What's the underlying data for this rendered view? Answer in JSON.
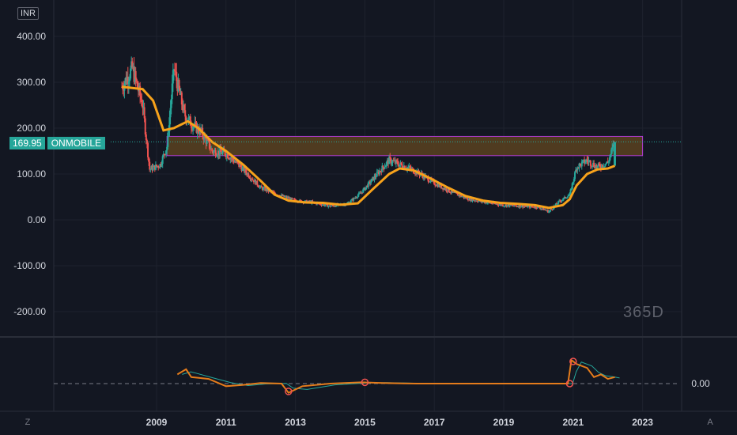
{
  "currency_label": "INR",
  "symbol": "ONMOBILE",
  "last_price": "169.95",
  "period_label": "365D",
  "corner_left": "Z",
  "corner_right": "A",
  "colors": {
    "up": "#26a69a",
    "down": "#ef5350",
    "ma": "#f7a21b",
    "zone_fill": "#5b4220",
    "zone_border": "#b03ad6",
    "price_line": "#26a69a"
  },
  "chart_data": {
    "type": "candlestick",
    "title": "",
    "xlabel": "",
    "ylabel": "",
    "yticks": [
      "400.00",
      "300.00",
      "200.00",
      "100.00",
      "0.00",
      "-100.00",
      "-200.00"
    ],
    "ylim": [
      -240,
      420
    ],
    "xticks": [
      "2009",
      "2011",
      "2013",
      "2015",
      "2017",
      "2019",
      "2021",
      "2023"
    ],
    "xlim": [
      2007.5,
      2024.0
    ],
    "price_series": [
      {
        "t": 2008.0,
        "close": 290
      },
      {
        "t": 2008.3,
        "close": 330
      },
      {
        "t": 2008.6,
        "close": 250
      },
      {
        "t": 2008.8,
        "close": 110
      },
      {
        "t": 2009.1,
        "close": 120
      },
      {
        "t": 2009.3,
        "close": 160
      },
      {
        "t": 2009.5,
        "close": 330
      },
      {
        "t": 2009.8,
        "close": 230
      },
      {
        "t": 2010.0,
        "close": 210
      },
      {
        "t": 2010.3,
        "close": 190
      },
      {
        "t": 2010.6,
        "close": 150
      },
      {
        "t": 2011.0,
        "close": 145
      },
      {
        "t": 2011.5,
        "close": 110
      },
      {
        "t": 2012.0,
        "close": 70
      },
      {
        "t": 2012.5,
        "close": 55
      },
      {
        "t": 2013.0,
        "close": 42
      },
      {
        "t": 2013.5,
        "close": 38
      },
      {
        "t": 2014.0,
        "close": 30
      },
      {
        "t": 2014.5,
        "close": 35
      },
      {
        "t": 2014.9,
        "close": 60
      },
      {
        "t": 2015.3,
        "close": 95
      },
      {
        "t": 2015.7,
        "close": 130
      },
      {
        "t": 2016.2,
        "close": 115
      },
      {
        "t": 2016.6,
        "close": 100
      },
      {
        "t": 2017.0,
        "close": 80
      },
      {
        "t": 2017.5,
        "close": 60
      },
      {
        "t": 2018.0,
        "close": 45
      },
      {
        "t": 2018.5,
        "close": 38
      },
      {
        "t": 2019.0,
        "close": 32
      },
      {
        "t": 2019.5,
        "close": 30
      },
      {
        "t": 2020.0,
        "close": 28
      },
      {
        "t": 2020.3,
        "close": 18
      },
      {
        "t": 2020.6,
        "close": 40
      },
      {
        "t": 2020.9,
        "close": 55
      },
      {
        "t": 2021.1,
        "close": 115
      },
      {
        "t": 2021.4,
        "close": 130
      },
      {
        "t": 2021.7,
        "close": 115
      },
      {
        "t": 2022.0,
        "close": 125
      },
      {
        "t": 2022.2,
        "close": 169.95
      }
    ],
    "moving_average": [
      {
        "t": 2008.0,
        "v": 290
      },
      {
        "t": 2008.6,
        "v": 285
      },
      {
        "t": 2008.9,
        "v": 260
      },
      {
        "t": 2009.2,
        "v": 195
      },
      {
        "t": 2009.5,
        "v": 200
      },
      {
        "t": 2009.9,
        "v": 215
      },
      {
        "t": 2010.2,
        "v": 200
      },
      {
        "t": 2010.6,
        "v": 170
      },
      {
        "t": 2011.0,
        "v": 150
      },
      {
        "t": 2011.5,
        "v": 120
      },
      {
        "t": 2012.0,
        "v": 85
      },
      {
        "t": 2012.4,
        "v": 55
      },
      {
        "t": 2012.8,
        "v": 42
      },
      {
        "t": 2013.3,
        "v": 38
      },
      {
        "t": 2013.8,
        "v": 37
      },
      {
        "t": 2014.3,
        "v": 33
      },
      {
        "t": 2014.8,
        "v": 36
      },
      {
        "t": 2015.2,
        "v": 65
      },
      {
        "t": 2015.7,
        "v": 100
      },
      {
        "t": 2016.0,
        "v": 112
      },
      {
        "t": 2016.4,
        "v": 108
      },
      {
        "t": 2016.9,
        "v": 90
      },
      {
        "t": 2017.4,
        "v": 70
      },
      {
        "t": 2017.9,
        "v": 52
      },
      {
        "t": 2018.4,
        "v": 42
      },
      {
        "t": 2018.9,
        "v": 37
      },
      {
        "t": 2019.4,
        "v": 35
      },
      {
        "t": 2019.9,
        "v": 32
      },
      {
        "t": 2020.3,
        "v": 26
      },
      {
        "t": 2020.7,
        "v": 32
      },
      {
        "t": 2020.9,
        "v": 45
      },
      {
        "t": 2021.1,
        "v": 75
      },
      {
        "t": 2021.4,
        "v": 100
      },
      {
        "t": 2021.7,
        "v": 110
      },
      {
        "t": 2022.0,
        "v": 112
      },
      {
        "t": 2022.2,
        "v": 118
      }
    ],
    "resistance_zone": {
      "t_start": 2009.3,
      "t_end": 2023.0,
      "y_low": 140,
      "y_high": 182
    },
    "indicator": {
      "yticks": [
        "0.00"
      ],
      "ylim": [
        -1,
        1
      ],
      "series": [
        {
          "t": 2009.6,
          "v": 0.35
        },
        {
          "t": 2009.85,
          "v": 0.55
        },
        {
          "t": 2010.0,
          "v": 0.25
        },
        {
          "t": 2010.5,
          "v": 0.18
        },
        {
          "t": 2011.0,
          "v": -0.1
        },
        {
          "t": 2011.5,
          "v": -0.05
        },
        {
          "t": 2012.0,
          "v": 0.02
        },
        {
          "t": 2012.6,
          "v": 0.0
        },
        {
          "t": 2012.8,
          "v": -0.35
        },
        {
          "t": 2013.2,
          "v": -0.1
        },
        {
          "t": 2014.0,
          "v": 0.0
        },
        {
          "t": 2014.9,
          "v": 0.05
        },
        {
          "t": 2015.5,
          "v": 0.02
        },
        {
          "t": 2016.5,
          "v": 0.0
        },
        {
          "t": 2017.5,
          "v": 0.0
        },
        {
          "t": 2018.5,
          "v": 0.0
        },
        {
          "t": 2019.5,
          "v": 0.0
        },
        {
          "t": 2020.5,
          "v": 0.0
        },
        {
          "t": 2020.85,
          "v": 0.0
        },
        {
          "t": 2020.95,
          "v": 0.9
        },
        {
          "t": 2021.1,
          "v": 0.75
        },
        {
          "t": 2021.4,
          "v": 0.6
        },
        {
          "t": 2021.6,
          "v": 0.25
        },
        {
          "t": 2021.8,
          "v": 0.35
        },
        {
          "t": 2022.0,
          "v": 0.18
        },
        {
          "t": 2022.2,
          "v": 0.25
        }
      ]
    }
  }
}
